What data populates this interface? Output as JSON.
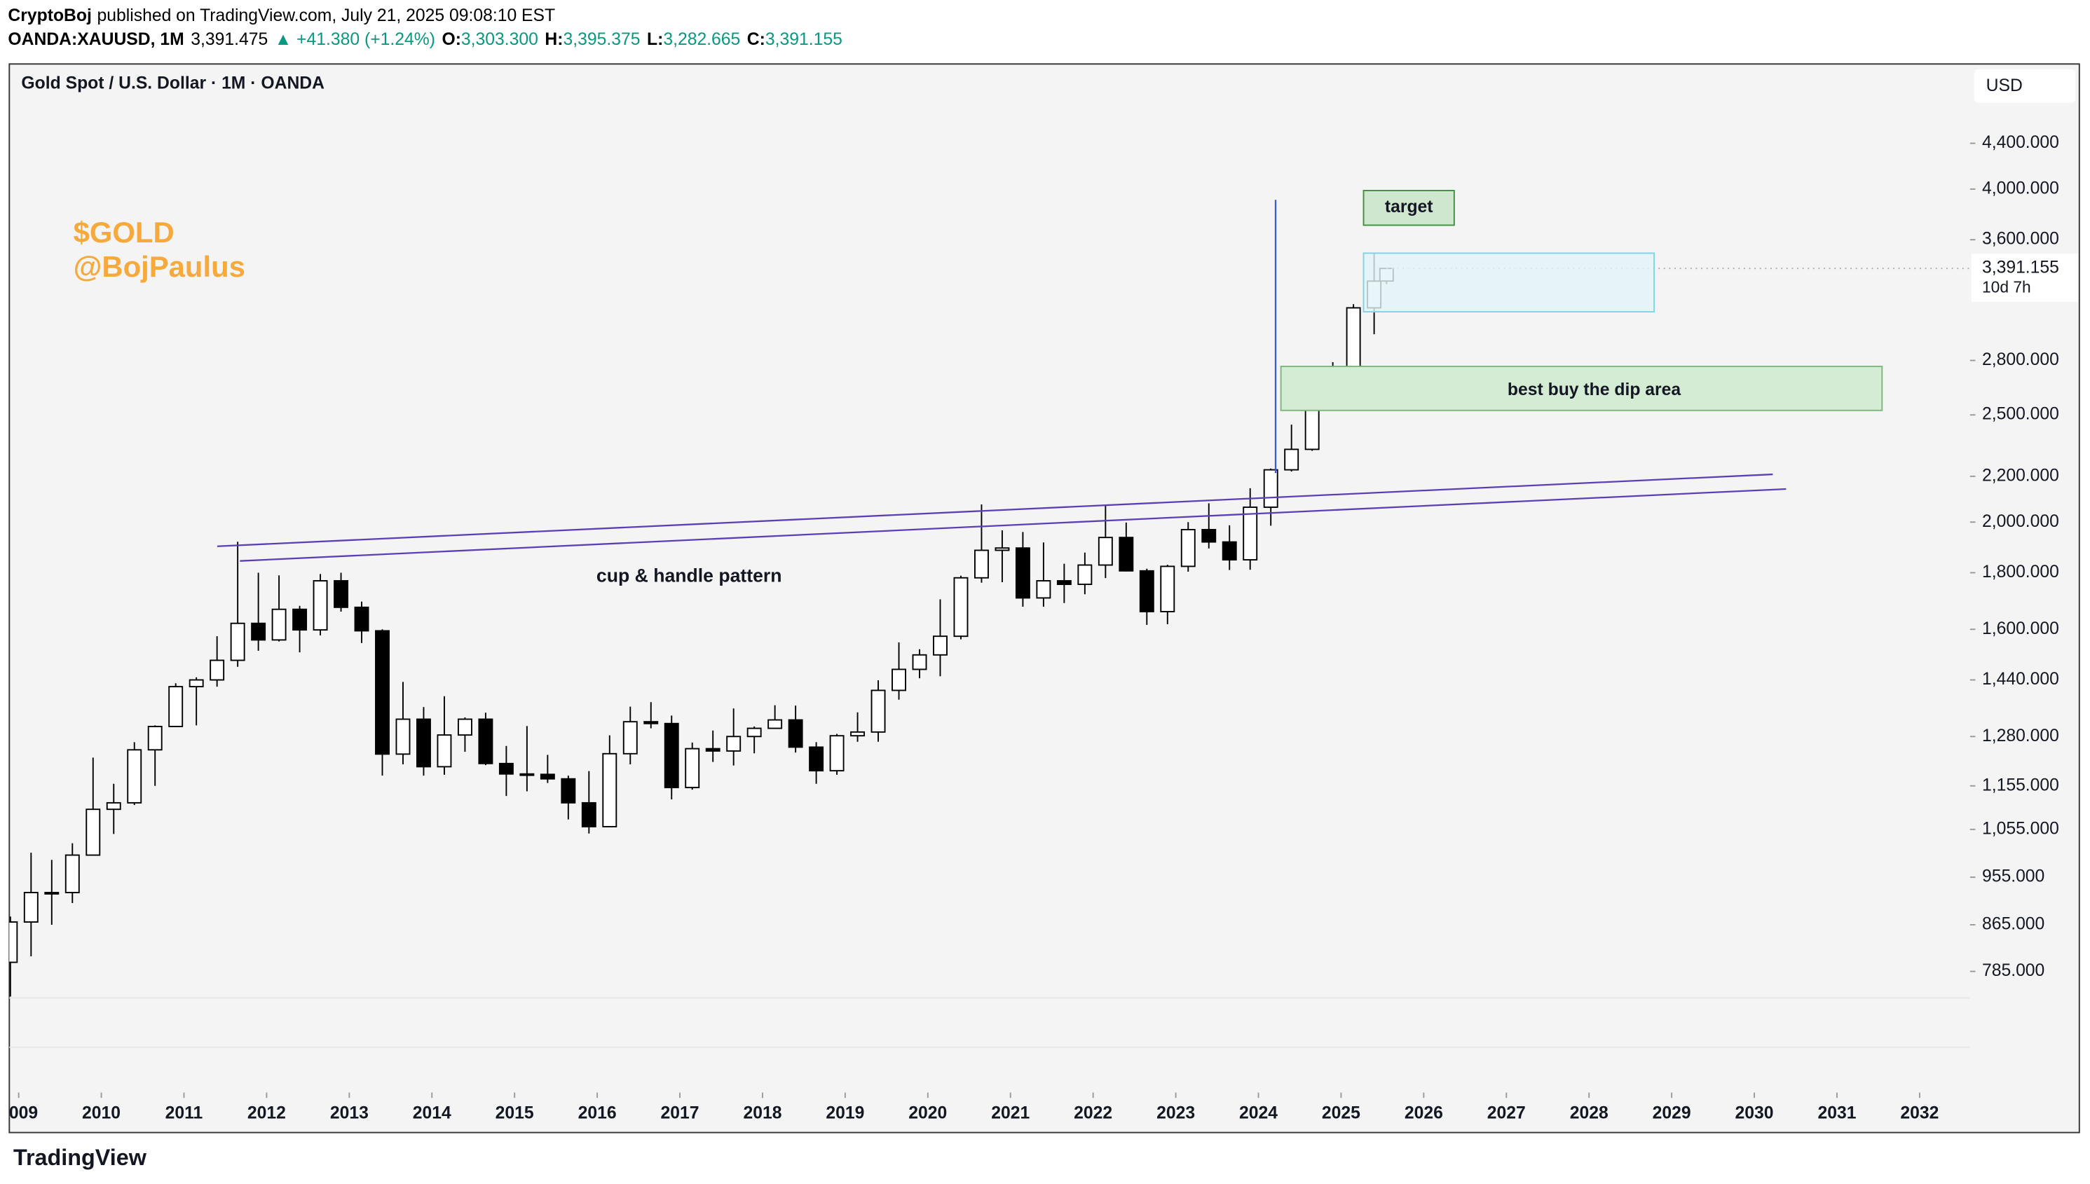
{
  "header": {
    "publisher": "CryptoBoj",
    "published": "published on TradingView.com, July 21, 2025 09:08:10 EST",
    "symbol": "OANDA:XAUUSD, 1M",
    "price": "3,391.475",
    "change": "▲ +41.380 (+1.24%)",
    "open_label": "O:",
    "open": "3,303.300",
    "high_label": "H:",
    "high": "3,395.375",
    "low_label": "L:",
    "low": "3,282.665",
    "close_label": "C:",
    "close": "3,391.155"
  },
  "brand": "TradingView",
  "chart_data": {
    "type": "candlestick",
    "title": "Gold Spot / U.S. Dollar · 1M · OANDA",
    "currency": "USD",
    "log_scale": true,
    "up_color": "#ffffff",
    "down_color": "#000000",
    "wick_color": "#000000",
    "labels": {
      "target": "target",
      "buy_zone": "best buy the dip area",
      "pattern": "cup & handle pattern",
      "watermark1": "$GOLD",
      "watermark2": "@BojPaulus"
    },
    "last_price_label": "3,391.155",
    "countdown": "10d 7h",
    "xlim": [
      2008.887,
      2032.61
    ],
    "ylim": [
      610,
      5190
    ],
    "xticks": [
      {
        "value": 2009,
        "label": "2009"
      },
      2010,
      2011,
      2012,
      2013,
      2014,
      2015,
      2016,
      2017,
      2018,
      2019,
      2020,
      2021,
      2022,
      2023,
      2024,
      2025,
      2026,
      2027,
      2028,
      2029,
      2030,
      2031,
      2032
    ],
    "yticks": [
      {
        "value": 785,
        "label": "785.000"
      },
      {
        "value": 865,
        "label": "865.000"
      },
      {
        "value": 955,
        "label": "955.000"
      },
      {
        "value": 1055,
        "label": "1,055.000"
      },
      {
        "value": 1155,
        "label": "1,155.000"
      },
      {
        "value": 1280,
        "label": "1,280.000"
      },
      {
        "value": 1440,
        "label": "1,440.000"
      },
      {
        "value": 1600,
        "label": "1,600.000"
      },
      {
        "value": 1800,
        "label": "1,800.000"
      },
      {
        "value": 2000,
        "label": "2,000.000"
      },
      {
        "value": 2200,
        "label": "2,200.000"
      },
      {
        "value": 2500,
        "label": "2,500.000"
      },
      {
        "value": 2800,
        "label": "2,800.000"
      },
      {
        "value": 3600,
        "label": "3,600.000"
      },
      {
        "value": 4000,
        "label": "4,000.000"
      },
      {
        "value": 4400,
        "label": "4,400.000"
      }
    ],
    "x": [
      2008.9,
      2009.15,
      2009.4,
      2009.65,
      2009.9,
      2010.15,
      2010.4,
      2010.65,
      2010.9,
      2011.15,
      2011.4,
      2011.65,
      2011.9,
      2012.15,
      2012.4,
      2012.65,
      2012.9,
      2013.15,
      2013.4,
      2013.65,
      2013.9,
      2014.15,
      2014.4,
      2014.65,
      2014.9,
      2015.15,
      2015.4,
      2015.65,
      2015.9,
      2016.15,
      2016.4,
      2016.65,
      2016.9,
      2017.15,
      2017.4,
      2017.65,
      2017.9,
      2018.15,
      2018.4,
      2018.65,
      2018.9,
      2019.15,
      2019.4,
      2019.65,
      2019.9,
      2020.15,
      2020.4,
      2020.65,
      2020.9,
      2021.15,
      2021.4,
      2021.65,
      2021.9,
      2022.15,
      2022.4,
      2022.65,
      2022.9,
      2023.15,
      2023.4,
      2023.65,
      2023.9,
      2024.15,
      2024.4,
      2024.65,
      2024.9,
      2025.15,
      2025.4,
      2025.55
    ],
    "candles": [
      [
        800,
        880,
        745,
        870
      ],
      [
        870,
        1005,
        810,
        925
      ],
      [
        925,
        990,
        865,
        925
      ],
      [
        925,
        1025,
        905,
        1000
      ],
      [
        1000,
        1225,
        1000,
        1100
      ],
      [
        1100,
        1160,
        1045,
        1115
      ],
      [
        1115,
        1265,
        1110,
        1245
      ],
      [
        1245,
        1310,
        1155,
        1307
      ],
      [
        1307,
        1430,
        1307,
        1420
      ],
      [
        1420,
        1448,
        1310,
        1440
      ],
      [
        1440,
        1577,
        1420,
        1500
      ],
      [
        1500,
        1920,
        1480,
        1620
      ],
      [
        1620,
        1800,
        1530,
        1565
      ],
      [
        1565,
        1790,
        1560,
        1668
      ],
      [
        1668,
        1680,
        1525,
        1598
      ],
      [
        1598,
        1795,
        1580,
        1770
      ],
      [
        1770,
        1800,
        1660,
        1675
      ],
      [
        1675,
        1695,
        1555,
        1595
      ],
      [
        1595,
        1600,
        1180,
        1234
      ],
      [
        1234,
        1434,
        1208,
        1327
      ],
      [
        1327,
        1361,
        1180,
        1202
      ],
      [
        1202,
        1392,
        1182,
        1284
      ],
      [
        1284,
        1332,
        1240,
        1327
      ],
      [
        1327,
        1345,
        1206,
        1210
      ],
      [
        1210,
        1255,
        1131,
        1184
      ],
      [
        1184,
        1308,
        1142,
        1183
      ],
      [
        1183,
        1232,
        1162,
        1172
      ],
      [
        1172,
        1180,
        1077,
        1115
      ],
      [
        1115,
        1191,
        1046,
        1061
      ],
      [
        1061,
        1283,
        1061,
        1235
      ],
      [
        1235,
        1362,
        1208,
        1320
      ],
      [
        1320,
        1375,
        1302,
        1315
      ],
      [
        1315,
        1337,
        1123,
        1151
      ],
      [
        1151,
        1264,
        1146,
        1248
      ],
      [
        1248,
        1296,
        1214,
        1242
      ],
      [
        1242,
        1357,
        1205,
        1280
      ],
      [
        1280,
        1307,
        1236,
        1302
      ],
      [
        1302,
        1366,
        1302,
        1325
      ],
      [
        1325,
        1365,
        1238,
        1252
      ],
      [
        1252,
        1265,
        1160,
        1192
      ],
      [
        1192,
        1287,
        1182,
        1282
      ],
      [
        1282,
        1346,
        1266,
        1292
      ],
      [
        1292,
        1439,
        1266,
        1409
      ],
      [
        1409,
        1557,
        1382,
        1472
      ],
      [
        1472,
        1535,
        1445,
        1517
      ],
      [
        1517,
        1703,
        1451,
        1577
      ],
      [
        1577,
        1789,
        1567,
        1781
      ],
      [
        1781,
        2075,
        1763,
        1886
      ],
      [
        1886,
        1966,
        1765,
        1895
      ],
      [
        1895,
        1959,
        1677,
        1708
      ],
      [
        1708,
        1917,
        1677,
        1770
      ],
      [
        1770,
        1834,
        1690,
        1757
      ],
      [
        1757,
        1877,
        1721,
        1829
      ],
      [
        1829,
        2070,
        1780,
        1937
      ],
      [
        1937,
        1998,
        1805,
        1807
      ],
      [
        1807,
        1815,
        1615,
        1660
      ],
      [
        1660,
        1830,
        1617,
        1824
      ],
      [
        1824,
        2000,
        1804,
        1969
      ],
      [
        1969,
        2080,
        1893,
        1919
      ],
      [
        1919,
        1987,
        1810,
        1849
      ],
      [
        1849,
        2146,
        1811,
        2063
      ],
      [
        2063,
        2236,
        1985,
        2230
      ],
      [
        2230,
        2450,
        2222,
        2327
      ],
      [
        2327,
        2685,
        2320,
        2634
      ],
      [
        2634,
        2790,
        2537,
        2625
      ],
      [
        2625,
        3148,
        2615,
        3124
      ],
      [
        3124,
        3500,
        2957,
        3303
      ],
      [
        3303.3,
        3395.375,
        3282.665,
        3391.155
      ]
    ]
  }
}
